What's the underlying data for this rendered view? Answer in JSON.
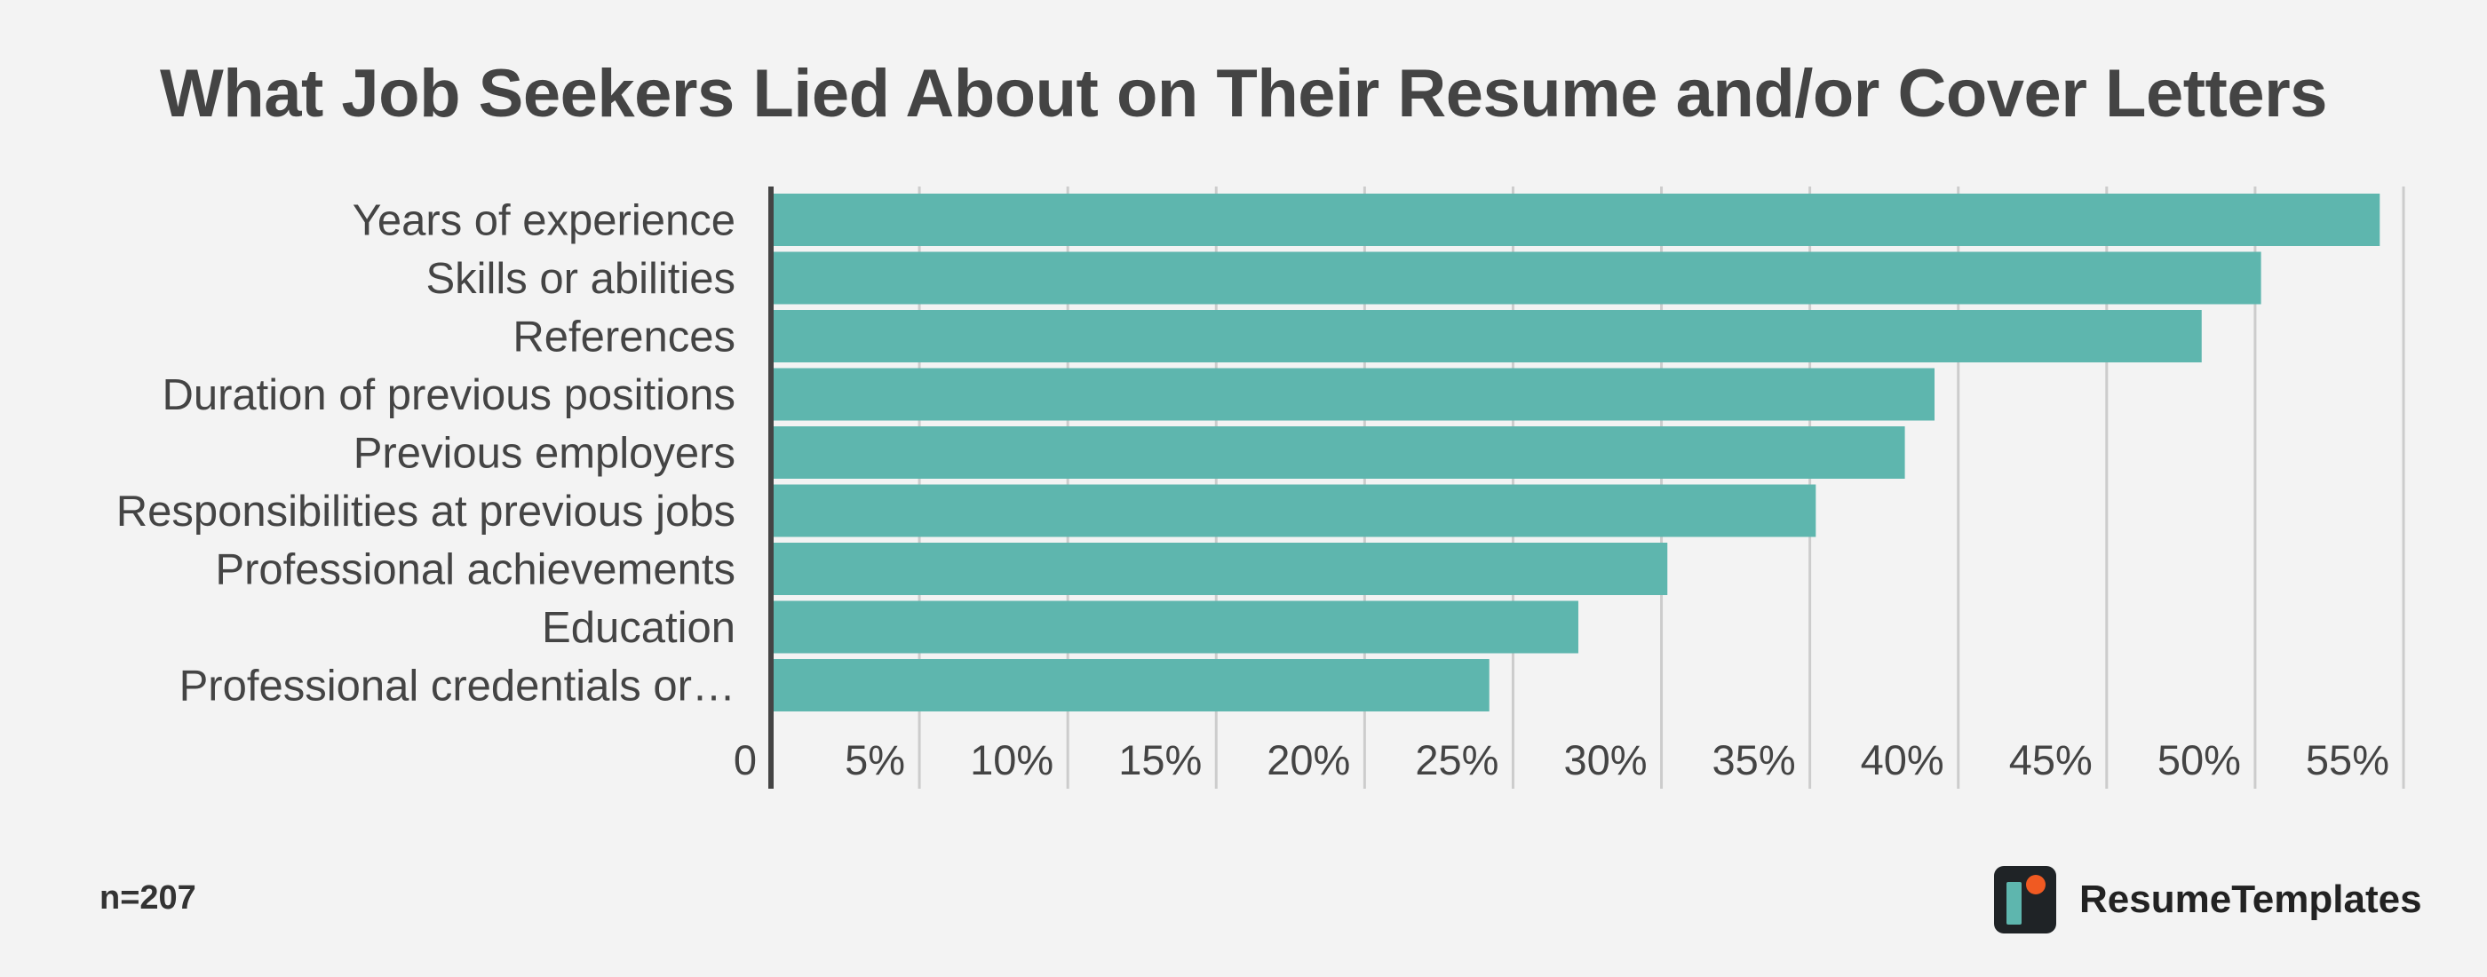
{
  "chart_data": {
    "type": "bar",
    "orientation": "horizontal",
    "title": "What Job Seekers Lied About on Their Resume and/or Cover Letters",
    "categories": [
      "Years of experience",
      "Skills or abilities",
      "References",
      "Duration of previous positions",
      "Previous employers",
      "Responsibilities at previous jobs",
      "Professional achievements",
      "Education",
      "Professional credentials or…"
    ],
    "values": [
      54.2,
      50.2,
      48.2,
      39.2,
      38.2,
      35.2,
      30.2,
      27.2,
      24.2
    ],
    "xlim": [
      0,
      55
    ],
    "x_ticks": [
      0,
      5,
      10,
      15,
      20,
      25,
      30,
      35,
      40,
      45,
      50,
      55
    ],
    "x_tick_labels": [
      "0",
      "5%",
      "10%",
      "15%",
      "20%",
      "25%",
      "30%",
      "35%",
      "40%",
      "45%",
      "50%",
      "55%"
    ],
    "grid": "vertical",
    "bar_color": "#5eb6ae",
    "gridline_color": "#cccccc",
    "axis_color": "#444444"
  },
  "footer": {
    "sample_size": "n=207",
    "brand_name": "ResumeTemplates"
  },
  "colors": {
    "background": "#f3f3f3",
    "text": "#444444",
    "logo_dark": "#1f2326",
    "logo_teal": "#5eb6ae",
    "logo_orange": "#f05a22"
  }
}
